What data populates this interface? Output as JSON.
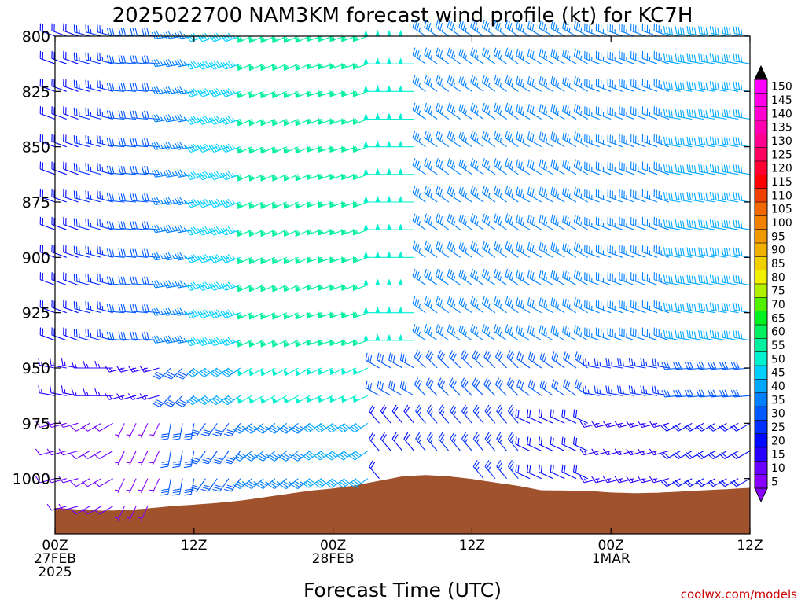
{
  "chart_data": {
    "type": "wind_barb_profile",
    "title": "2025022700 NAM3KM forecast wind profile (kt) for KC7H",
    "xlabel": "Forecast Time (UTC)",
    "ylabel": "",
    "credit": "coolwx.com/models",
    "x_range_hours": [
      0,
      60
    ],
    "x_step_hours": 1,
    "x_ticks": [
      {
        "hour": 0,
        "lines": [
          "00Z",
          "27FEB",
          "2025"
        ]
      },
      {
        "hour": 12,
        "lines": [
          "12Z"
        ]
      },
      {
        "hour": 24,
        "lines": [
          "00Z",
          "28FEB"
        ]
      },
      {
        "hour": 36,
        "lines": [
          "12Z"
        ]
      },
      {
        "hour": 48,
        "lines": [
          "00Z",
          "1MAR"
        ]
      },
      {
        "hour": 60,
        "lines": [
          "12Z"
        ]
      }
    ],
    "y_scale": "pressure_hPa_inverted",
    "y_range_hPa": [
      800,
      1025
    ],
    "y_ticks": [
      "800",
      "825",
      "850",
      "875",
      "900",
      "925",
      "950",
      "975",
      "1000"
    ],
    "levels_hPa": [
      800,
      812.5,
      825,
      837.5,
      850,
      862.5,
      875,
      887.5,
      900,
      912.5,
      925,
      937.5,
      950,
      962.5,
      975,
      987.5,
      1000,
      1012.5,
      1025
    ],
    "colorbar": {
      "labels": [
        "5",
        "10",
        "15",
        "20",
        "25",
        "30",
        "35",
        "40",
        "45",
        "50",
        "55",
        "60",
        "65",
        "70",
        "75",
        "80",
        "85",
        "90",
        "95",
        "100",
        "105",
        "110",
        "115",
        "120",
        "125",
        "130",
        "135",
        "140",
        "145",
        "150"
      ],
      "colors": [
        "#8800ff",
        "#6a00ff",
        "#2800ff",
        "#0008ff",
        "#0030ff",
        "#0058ff",
        "#0080ff",
        "#00a8ff",
        "#00d0ff",
        "#00f0d0",
        "#00f0a0",
        "#00f060",
        "#00f020",
        "#50f000",
        "#b0f000",
        "#f0f000",
        "#f0d000",
        "#f0b000",
        "#f09800",
        "#f08000",
        "#f06800",
        "#f04000",
        "#ff0000",
        "#ff0030",
        "#ff0060",
        "#ff0090",
        "#ff00b0",
        "#ff00d0",
        "#ff00e8",
        "#ff00ff"
      ],
      "extend": "both"
    },
    "terrain": {
      "color": "#a0522d",
      "surface_pressure_hPa": [
        [
          0,
          1013.2
        ],
        [
          2,
          1014
        ],
        [
          4,
          1014.5
        ],
        [
          6,
          1014.3
        ],
        [
          8,
          1013.5
        ],
        [
          10,
          1012.5
        ],
        [
          12,
          1011.8
        ],
        [
          14,
          1011
        ],
        [
          16,
          1010
        ],
        [
          18,
          1008.5
        ],
        [
          20,
          1007
        ],
        [
          22,
          1005.5
        ],
        [
          24,
          1004.5
        ],
        [
          26,
          1003
        ],
        [
          28,
          1001
        ],
        [
          30,
          999
        ],
        [
          32,
          998.4
        ],
        [
          34,
          999
        ],
        [
          36,
          1000.2
        ],
        [
          38,
          1001.8
        ],
        [
          40,
          1003.3
        ],
        [
          42,
          1005.3
        ],
        [
          44,
          1005.4
        ],
        [
          46,
          1005.6
        ],
        [
          48,
          1006.3
        ],
        [
          50,
          1006.6
        ],
        [
          52,
          1006.4
        ],
        [
          54,
          1005.9
        ],
        [
          56,
          1005.3
        ],
        [
          58,
          1004.8
        ],
        [
          60,
          1004.2
        ]
      ]
    },
    "wind_segments": [
      {
        "hours": [
          0,
          2
        ],
        "above_950": {
          "dir": 290,
          "speed": 20
        },
        "near_950": {
          "dir": 280,
          "speed": 15
        },
        "low": {
          "dir": 255,
          "speed": 10
        }
      },
      {
        "hours": [
          3,
          5
        ],
        "above_950": {
          "dir": 285,
          "speed": 25
        },
        "near_950": {
          "dir": 270,
          "speed": 15
        },
        "low": {
          "dir": 240,
          "speed": 10
        }
      },
      {
        "hours": [
          6,
          9
        ],
        "above_950": {
          "dir": 275,
          "speed": 30
        },
        "near_950": {
          "dir": 255,
          "speed": 15
        },
        "low": {
          "dir": 205,
          "speed": 5
        }
      },
      {
        "hours": [
          10,
          12
        ],
        "above_950": {
          "dir": 260,
          "speed": 35
        },
        "near_950": {
          "dir": 225,
          "speed": 30
        },
        "low": {
          "dir": 190,
          "speed": 30
        }
      },
      {
        "hours": [
          13,
          16
        ],
        "above_950": {
          "dir": 250,
          "speed": 45
        },
        "near_950": {
          "dir": 235,
          "speed": 40
        },
        "low": {
          "dir": 215,
          "speed": 30
        }
      },
      {
        "hours": [
          17,
          22
        ],
        "above_950": {
          "dir": 245,
          "speed": 55
        },
        "near_950": {
          "dir": 240,
          "speed": 50
        },
        "low": {
          "dir": 230,
          "speed": 35
        }
      },
      {
        "hours": [
          23,
          27
        ],
        "above_950": {
          "dir": 250,
          "speed": 55
        },
        "near_950": {
          "dir": 245,
          "speed": 50
        },
        "low": {
          "dir": 235,
          "speed": 40
        }
      },
      {
        "hours": [
          28,
          31
        ],
        "above_950": {
          "dir": 270,
          "speed": 50
        },
        "near_950": {
          "dir": 300,
          "speed": 30
        },
        "low": {
          "dir": 320,
          "speed": 20
        }
      },
      {
        "hours": [
          32,
          40
        ],
        "above_950": {
          "dir": 305,
          "speed": 35
        },
        "near_950": {
          "dir": 315,
          "speed": 30
        },
        "low": {
          "dir": 320,
          "speed": 25
        }
      },
      {
        "hours": [
          41,
          46
        ],
        "above_950": {
          "dir": 300,
          "speed": 35
        },
        "near_950": {
          "dir": 305,
          "speed": 30
        },
        "low": {
          "dir": 295,
          "speed": 20
        }
      },
      {
        "hours": [
          47,
          53
        ],
        "above_950": {
          "dir": 290,
          "speed": 35
        },
        "near_950": {
          "dir": 280,
          "speed": 25
        },
        "low": {
          "dir": 255,
          "speed": 15
        }
      },
      {
        "hours": [
          54,
          60
        ],
        "above_950": {
          "dir": 280,
          "speed": 40
        },
        "near_950": {
          "dir": 265,
          "speed": 30
        },
        "low": {
          "dir": 240,
          "speed": 20
        }
      }
    ]
  }
}
